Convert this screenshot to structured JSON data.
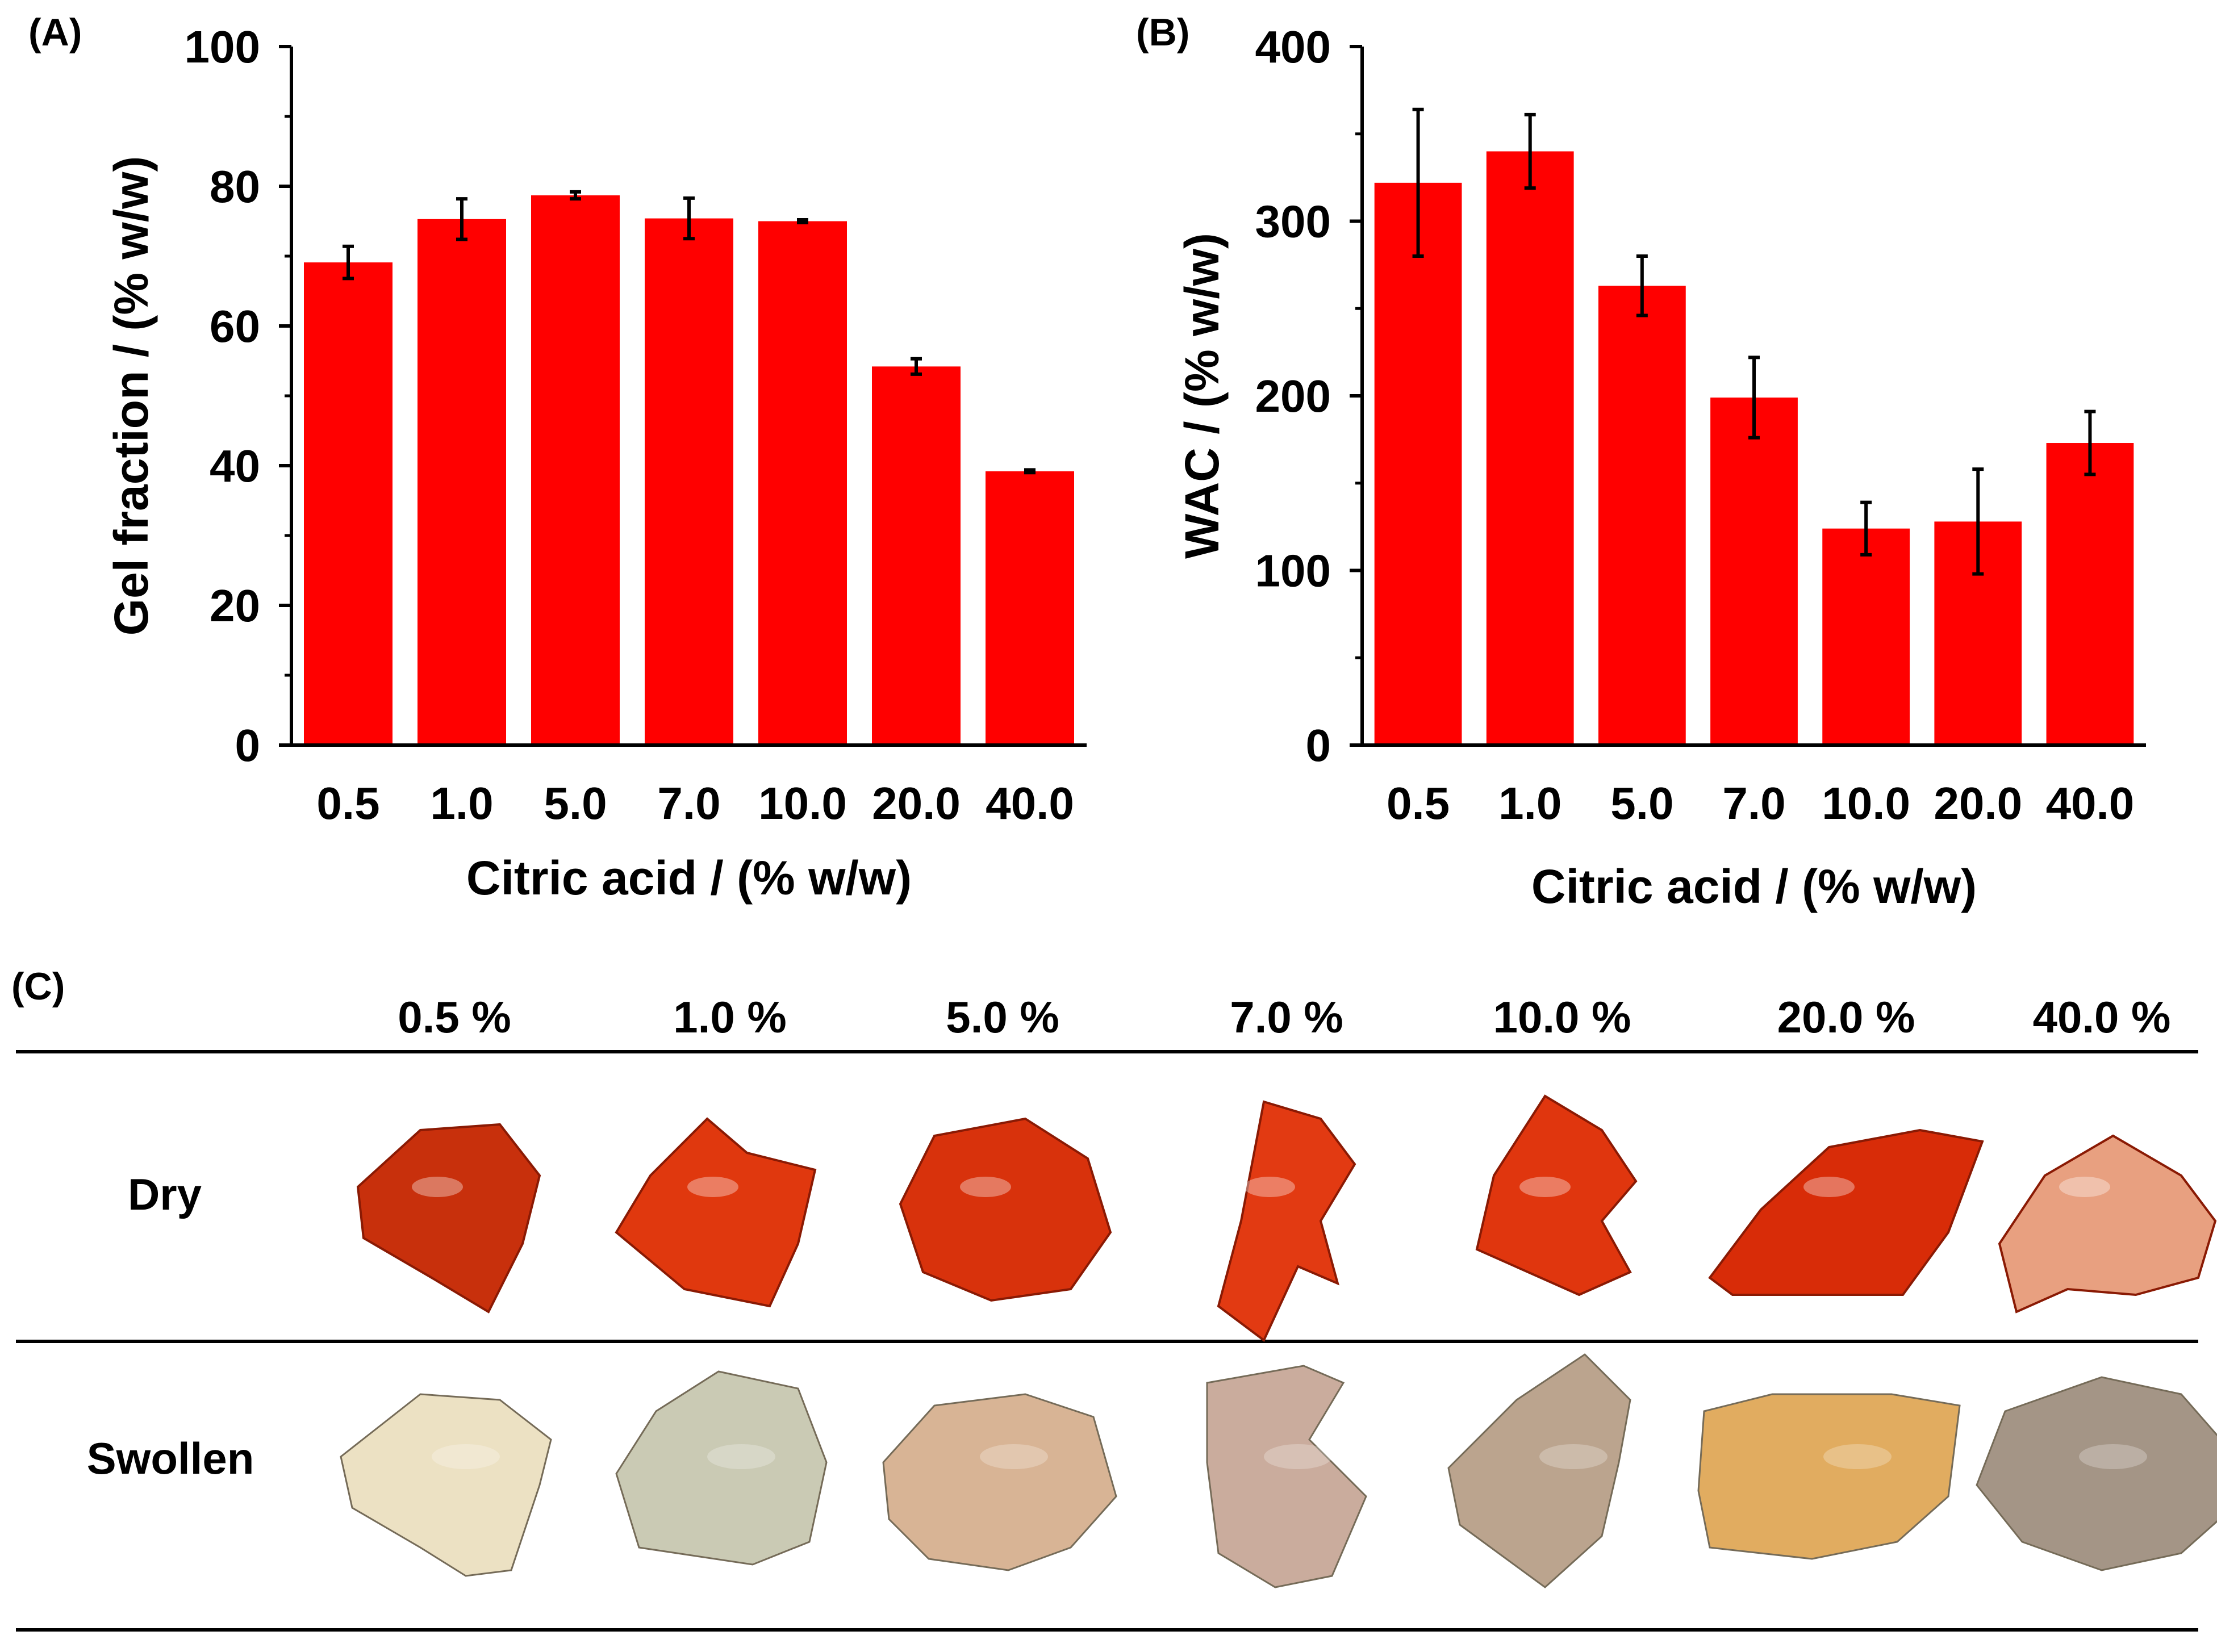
{
  "chart_data": [
    {
      "type": "bar",
      "panel": "(A)",
      "categories": [
        "0.5",
        "1.0",
        "5.0",
        "7.0",
        "10.0",
        "20.0",
        "40.0"
      ],
      "values": [
        69.1,
        75.3,
        78.7,
        75.4,
        75.0,
        54.2,
        39.2
      ],
      "errors": [
        2.3,
        2.9,
        0.5,
        2.9,
        0.2,
        1.1,
        0.2
      ],
      "xlabel": "Citric acid / (% w/w)",
      "ylabel": "Gel fraction / (% w/w)",
      "ylim": [
        0,
        100
      ],
      "yticks": [
        0,
        20,
        40,
        60,
        80,
        100
      ],
      "bar_color": "#ff0000",
      "grid": false
    },
    {
      "type": "bar",
      "panel": "(B)",
      "categories": [
        "0.5",
        "1.0",
        "5.0",
        "7.0",
        "10.0",
        "20.0",
        "40.0"
      ],
      "values": [
        322,
        340,
        263,
        199,
        124,
        128,
        173
      ],
      "errors": [
        42,
        21,
        17,
        23,
        15,
        30,
        18
      ],
      "xlabel": "Citric acid / (% w/w)",
      "ylabel": "WAC / (% w/w)",
      "ylim": [
        0,
        400
      ],
      "yticks": [
        0,
        100,
        200,
        300,
        400
      ],
      "bar_color": "#ff0000",
      "grid": false
    }
  ],
  "panel_c": {
    "label": "(C)",
    "columns": [
      "0.5 %",
      "1.0 %",
      "5.0 %",
      "7.0 %",
      "10.0 %",
      "20.0 %",
      "40.0 %"
    ],
    "rows": [
      "Dry",
      "Swollen"
    ],
    "dry_colors": [
      "#c8300c",
      "#e0380e",
      "#d8320c",
      "#e23a12",
      "#e0360e",
      "#d82c08",
      "#e8a080"
    ],
    "swollen_colors": [
      "#ece0c0",
      "#c8c8b0",
      "#d6b090",
      "#c8a898",
      "#b8a088",
      "#e0a858",
      "#a09080"
    ]
  }
}
